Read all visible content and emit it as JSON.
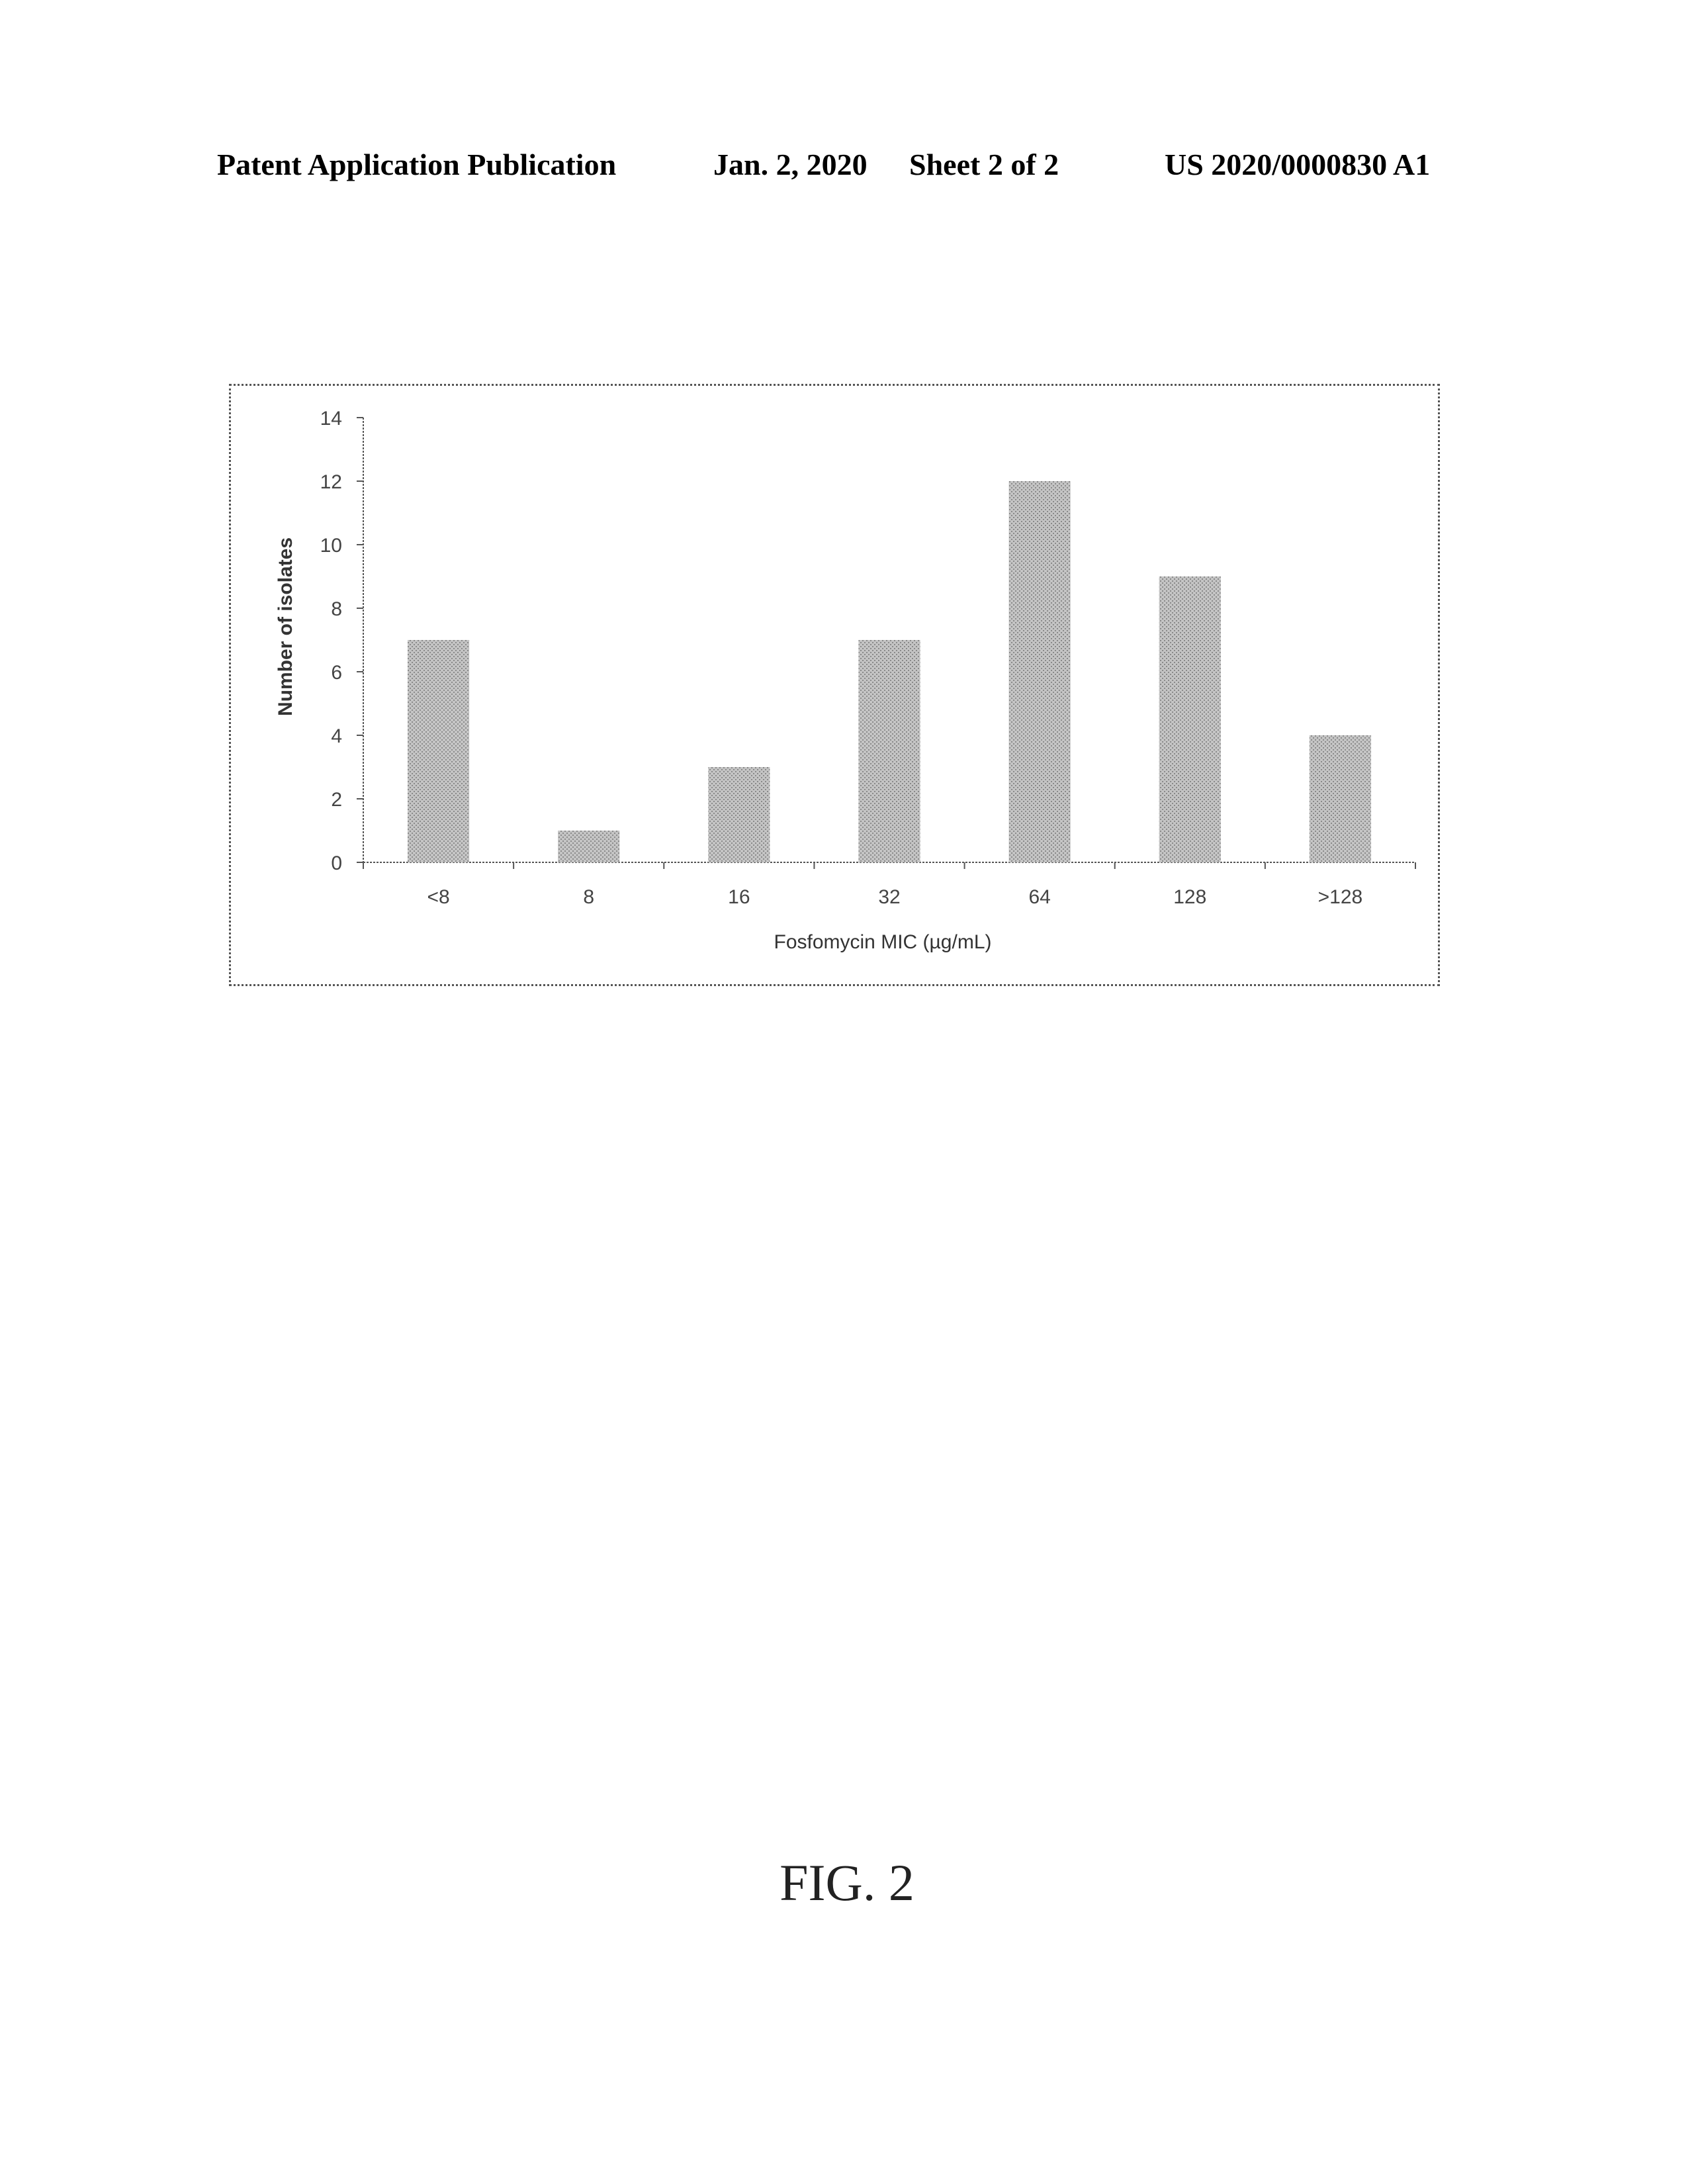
{
  "header": {
    "publication": "Patent Application Publication",
    "date": "Jan. 2, 2020",
    "sheet": "Sheet 2 of 2",
    "number": "US 2020/0000830 A1"
  },
  "figure_caption": "FIG. 2",
  "chart_data": {
    "type": "bar",
    "categories": [
      "<8",
      "8",
      "16",
      "32",
      "64",
      "128",
      ">128"
    ],
    "values": [
      7,
      1,
      3,
      7,
      12,
      9,
      4
    ],
    "xlabel": "Fosfomycin MIC (µg/mL)",
    "ylabel": "Number of isolates",
    "ylim": [
      0,
      14
    ],
    "yticks": [
      0,
      2,
      4,
      6,
      8,
      10,
      12,
      14
    ],
    "grid": false,
    "legend": "none",
    "bar_color": "#b8b8b8"
  }
}
